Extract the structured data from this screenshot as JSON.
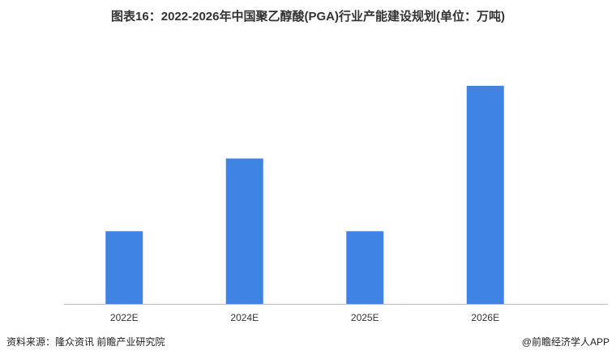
{
  "chart_data": {
    "type": "bar",
    "title": "图表16：2022-2026年中国聚乙醇酸(PGA)行业产能建设规划(单位：万吨)",
    "categories": [
      "2022E",
      "2024E",
      "2025E",
      "2026E"
    ],
    "values": [
      10,
      20,
      10,
      30
    ],
    "color": "#3f84e5",
    "ylim": [
      0,
      35
    ],
    "source": "资料来源：隆众资讯 前瞻产业研究院",
    "brand": "@前瞻经济学人APP"
  }
}
